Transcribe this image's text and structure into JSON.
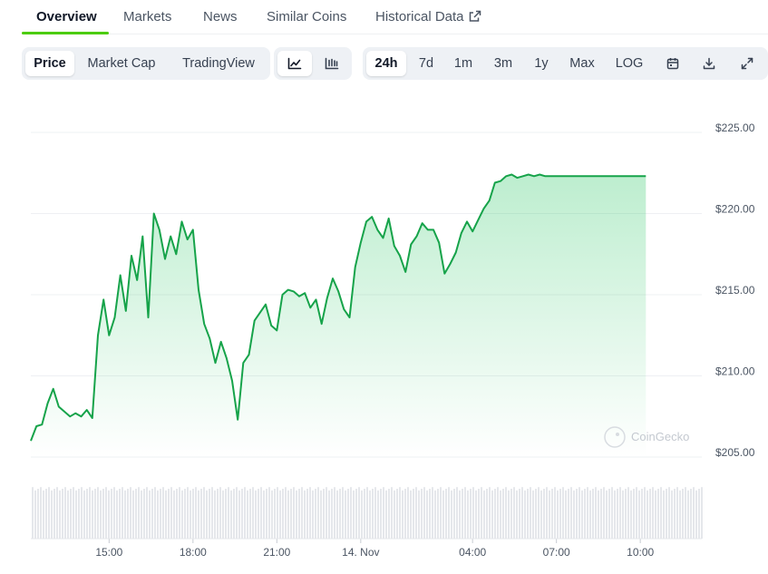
{
  "tabs": [
    {
      "label": "Overview",
      "active": true
    },
    {
      "label": "Markets",
      "active": false
    },
    {
      "label": "News",
      "active": false
    },
    {
      "label": "Similar Coins",
      "active": false
    },
    {
      "label": "Historical Data",
      "active": false,
      "icon": "external-link-icon"
    }
  ],
  "toolbar": {
    "metric": [
      {
        "label": "Price",
        "active": true
      },
      {
        "label": "Market Cap",
        "active": false
      },
      {
        "label": "TradingView",
        "active": false
      }
    ],
    "chart_type": [
      {
        "icon": "line-chart-icon",
        "active": true
      },
      {
        "icon": "candlestick-chart-icon",
        "active": false
      }
    ],
    "ranges": [
      {
        "label": "24h",
        "active": true
      },
      {
        "label": "7d",
        "active": false
      },
      {
        "label": "1m",
        "active": false
      },
      {
        "label": "3m",
        "active": false
      },
      {
        "label": "1y",
        "active": false
      },
      {
        "label": "Max",
        "active": false
      },
      {
        "label": "LOG",
        "active": false
      }
    ],
    "tools": [
      "calendar-icon",
      "download-icon",
      "fullscreen-icon"
    ]
  },
  "colors": {
    "accent": "#4bcc00",
    "line": "#16a34a",
    "volume": "#e5e7eb"
  },
  "watermark": "CoinGecko",
  "chart_data": {
    "type": "line",
    "title": "",
    "xlabel": "",
    "ylabel": "",
    "y_ticks": [
      "$225.00",
      "$220.00",
      "$215.00",
      "$210.00",
      "$205.00"
    ],
    "y_tick_values": [
      225,
      220,
      215,
      210,
      205
    ],
    "ylim": [
      205,
      225
    ],
    "x_ticks": [
      "15:00",
      "18:00",
      "21:00",
      "14. Nov",
      "04:00",
      "07:00",
      "10:00"
    ],
    "x_tick_values": [
      15,
      18,
      21,
      24,
      28,
      31,
      34
    ],
    "xlim": [
      12.2,
      36.2
    ],
    "grid": true,
    "legend": "none",
    "series": [
      {
        "x": [
          12.2,
          12.4,
          12.6,
          12.8,
          13.0,
          13.2,
          13.4,
          13.6,
          13.8,
          14.0,
          14.2,
          14.4,
          14.6,
          14.8,
          15.0,
          15.2,
          15.4,
          15.6,
          15.8,
          16.0,
          16.2,
          16.4,
          16.6,
          16.8,
          17.0,
          17.2,
          17.4,
          17.6,
          17.8,
          18.0,
          18.2,
          18.4,
          18.6,
          18.8,
          19.0,
          19.2,
          19.4,
          19.6,
          19.8,
          20.0,
          20.2,
          20.4,
          20.6,
          20.8,
          21.0,
          21.2,
          21.4,
          21.6,
          21.8,
          22.0,
          22.2,
          22.4,
          22.6,
          22.8,
          23.0,
          23.2,
          23.4,
          23.6,
          23.8,
          24.0,
          24.2,
          24.4,
          24.6,
          24.8,
          25.0,
          25.2,
          25.4,
          25.6,
          25.8,
          26.0,
          26.2,
          26.4,
          26.6,
          26.8,
          27.0,
          27.2,
          27.4,
          27.6,
          27.8,
          28.0,
          28.2,
          28.4,
          28.6,
          28.8,
          29.0,
          29.2,
          29.4,
          29.6,
          29.8,
          30.0,
          30.2,
          30.4,
          30.6,
          30.8,
          31.0,
          31.2,
          31.4,
          31.6,
          31.8,
          32.0,
          32.2,
          32.4,
          32.6,
          32.8,
          33.0,
          33.2,
          33.4,
          33.6,
          33.8,
          34.0,
          34.2
        ],
        "y": [
          206.0,
          206.9,
          207.0,
          208.3,
          209.2,
          208.1,
          207.8,
          207.5,
          207.7,
          207.5,
          207.9,
          207.4,
          212.5,
          214.7,
          212.5,
          213.6,
          216.2,
          214.0,
          217.4,
          215.9,
          218.6,
          213.6,
          220.0,
          219.0,
          217.2,
          218.6,
          217.5,
          219.5,
          218.4,
          219.0,
          215.3,
          213.2,
          212.3,
          210.8,
          212.1,
          211.1,
          209.7,
          207.3,
          210.8,
          211.3,
          213.4,
          213.9,
          214.4,
          213.1,
          212.8,
          215.0,
          215.3,
          215.2,
          214.9,
          215.1,
          214.2,
          214.7,
          213.2,
          214.8,
          216.0,
          215.2,
          214.1,
          213.6,
          216.7,
          218.2,
          219.5,
          219.8,
          219.0,
          218.5,
          219.7,
          218.0,
          217.4,
          216.4,
          218.1,
          218.6,
          219.4,
          219.0,
          219.0,
          218.2,
          216.3,
          216.9,
          217.6,
          218.8,
          219.5,
          218.9,
          219.6,
          220.3,
          220.8,
          221.9,
          222.0,
          222.3,
          222.4,
          222.2,
          222.3,
          222.4,
          222.3,
          222.4,
          222.3,
          222.3,
          222.3,
          222.3,
          222.3,
          222.3,
          222.3,
          222.3,
          222.3,
          222.3,
          222.3,
          222.3,
          222.3,
          222.3,
          222.3,
          222.3,
          222.3,
          222.3,
          222.3
        ]
      }
    ]
  }
}
